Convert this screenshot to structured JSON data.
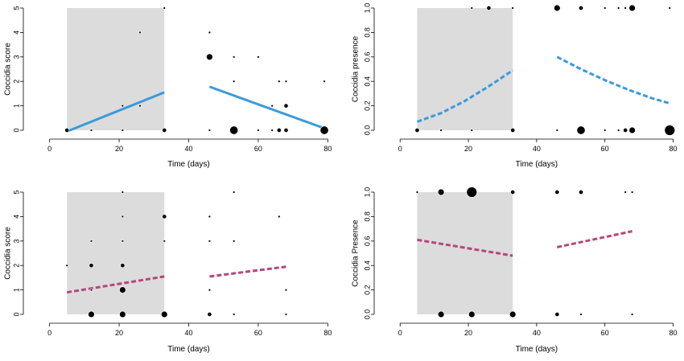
{
  "chart_data": [
    {
      "type": "scatter",
      "xlabel": "Time (days)",
      "ylabel": "Coccidia score",
      "xlim": [
        -5,
        82
      ],
      "ylim": [
        0,
        5
      ],
      "xticks": [
        0,
        20,
        40,
        60,
        80
      ],
      "yticks": [
        0,
        1,
        2,
        3,
        4,
        5
      ],
      "shaded_region": {
        "x": [
          5,
          33
        ],
        "y": [
          0,
          5
        ]
      },
      "points": [
        {
          "x": 5,
          "y": 0,
          "n": 2
        },
        {
          "x": 12,
          "y": 0,
          "n": 1
        },
        {
          "x": 21,
          "y": 0,
          "n": 1
        },
        {
          "x": 21,
          "y": 1,
          "n": 1
        },
        {
          "x": 26,
          "y": 1,
          "n": 1
        },
        {
          "x": 26,
          "y": 4,
          "n": 1
        },
        {
          "x": 33,
          "y": 0,
          "n": 2
        },
        {
          "x": 33,
          "y": 5,
          "n": 1
        },
        {
          "x": 46,
          "y": 0,
          "n": 1
        },
        {
          "x": 46,
          "y": 3,
          "n": 3
        },
        {
          "x": 46,
          "y": 4,
          "n": 1
        },
        {
          "x": 53,
          "y": 0,
          "n": 4
        },
        {
          "x": 53,
          "y": 2,
          "n": 1
        },
        {
          "x": 53,
          "y": 3,
          "n": 1
        },
        {
          "x": 60,
          "y": 0,
          "n": 1
        },
        {
          "x": 60,
          "y": 3,
          "n": 1
        },
        {
          "x": 64,
          "y": 0,
          "n": 1
        },
        {
          "x": 64,
          "y": 1,
          "n": 1
        },
        {
          "x": 66,
          "y": 0,
          "n": 2
        },
        {
          "x": 66,
          "y": 2,
          "n": 1
        },
        {
          "x": 68,
          "y": 0,
          "n": 2
        },
        {
          "x": 68,
          "y": 1,
          "n": 2
        },
        {
          "x": 68,
          "y": 2,
          "n": 1
        },
        {
          "x": 79,
          "y": 0,
          "n": 4
        },
        {
          "x": 79,
          "y": 2,
          "n": 1
        }
      ],
      "fits": [
        {
          "x": [
            5,
            33
          ],
          "y": [
            -0.05,
            1.55
          ],
          "color": "#3a9ad9",
          "style": "solid"
        },
        {
          "x": [
            46,
            79
          ],
          "y": [
            1.78,
            0.08
          ],
          "color": "#3a9ad9",
          "style": "solid"
        }
      ]
    },
    {
      "type": "scatter",
      "xlabel": "Time (days)",
      "ylabel": "Coccidia presence",
      "xlim": [
        -5,
        82
      ],
      "ylim": [
        0,
        1
      ],
      "xticks": [
        0,
        20,
        40,
        60,
        80
      ],
      "yticks": [
        0.0,
        0.2,
        0.4,
        0.6,
        0.8,
        1.0
      ],
      "ytick_labels": [
        "0.0",
        "0.2",
        "0.4",
        "0.6",
        "0.8",
        "1.0"
      ],
      "shaded_region": {
        "x": [
          5,
          33
        ],
        "y": [
          0,
          1
        ]
      },
      "points": [
        {
          "x": 5,
          "y": 0,
          "n": 2
        },
        {
          "x": 12,
          "y": 0,
          "n": 1
        },
        {
          "x": 21,
          "y": 0,
          "n": 1
        },
        {
          "x": 21,
          "y": 1,
          "n": 1
        },
        {
          "x": 26,
          "y": 1,
          "n": 2
        },
        {
          "x": 33,
          "y": 0,
          "n": 2
        },
        {
          "x": 33,
          "y": 1,
          "n": 1
        },
        {
          "x": 46,
          "y": 0,
          "n": 1
        },
        {
          "x": 46,
          "y": 1,
          "n": 3
        },
        {
          "x": 53,
          "y": 0,
          "n": 4
        },
        {
          "x": 53,
          "y": 1,
          "n": 2
        },
        {
          "x": 60,
          "y": 0,
          "n": 1
        },
        {
          "x": 60,
          "y": 1,
          "n": 1
        },
        {
          "x": 64,
          "y": 0,
          "n": 1
        },
        {
          "x": 64,
          "y": 1,
          "n": 1
        },
        {
          "x": 66,
          "y": 0,
          "n": 2
        },
        {
          "x": 66,
          "y": 1,
          "n": 1
        },
        {
          "x": 68,
          "y": 0,
          "n": 3
        },
        {
          "x": 68,
          "y": 1,
          "n": 3
        },
        {
          "x": 79,
          "y": 0,
          "n": 5
        },
        {
          "x": 79,
          "y": 1,
          "n": 1
        }
      ],
      "fits": [
        {
          "x": [
            5,
            12,
            19,
            26,
            33
          ],
          "y": [
            0.07,
            0.14,
            0.24,
            0.36,
            0.49
          ],
          "color": "#3a9ad9",
          "style": "dashed"
        },
        {
          "x": [
            46,
            53,
            60,
            67,
            74,
            79
          ],
          "y": [
            0.6,
            0.5,
            0.41,
            0.33,
            0.26,
            0.22
          ],
          "color": "#3a9ad9",
          "style": "dashed"
        }
      ]
    },
    {
      "type": "scatter",
      "xlabel": "Time (days)",
      "ylabel": "Coccidia score",
      "xlim": [
        -5,
        82
      ],
      "ylim": [
        0,
        5
      ],
      "xticks": [
        0,
        20,
        40,
        60,
        80
      ],
      "yticks": [
        0,
        1,
        2,
        3,
        4,
        5
      ],
      "shaded_region": {
        "x": [
          5,
          33
        ],
        "y": [
          0,
          5
        ]
      },
      "points": [
        {
          "x": 5,
          "y": 2,
          "n": 1
        },
        {
          "x": 12,
          "y": 0,
          "n": 3
        },
        {
          "x": 12,
          "y": 1,
          "n": 1
        },
        {
          "x": 12,
          "y": 2,
          "n": 2
        },
        {
          "x": 12,
          "y": 3,
          "n": 1
        },
        {
          "x": 21,
          "y": 0,
          "n": 3
        },
        {
          "x": 21,
          "y": 1,
          "n": 3
        },
        {
          "x": 21,
          "y": 2,
          "n": 2
        },
        {
          "x": 21,
          "y": 3,
          "n": 1
        },
        {
          "x": 21,
          "y": 4,
          "n": 1
        },
        {
          "x": 21,
          "y": 5,
          "n": 1
        },
        {
          "x": 33,
          "y": 0,
          "n": 3
        },
        {
          "x": 33,
          "y": 3,
          "n": 1
        },
        {
          "x": 33,
          "y": 4,
          "n": 2
        },
        {
          "x": 46,
          "y": 0,
          "n": 2
        },
        {
          "x": 46,
          "y": 1,
          "n": 1
        },
        {
          "x": 46,
          "y": 3,
          "n": 1
        },
        {
          "x": 46,
          "y": 4,
          "n": 1
        },
        {
          "x": 53,
          "y": 0,
          "n": 1
        },
        {
          "x": 53,
          "y": 3,
          "n": 1
        },
        {
          "x": 53,
          "y": 5,
          "n": 1
        },
        {
          "x": 66,
          "y": 4,
          "n": 1
        },
        {
          "x": 68,
          "y": 0,
          "n": 1
        },
        {
          "x": 68,
          "y": 1,
          "n": 1
        }
      ],
      "fits": [
        {
          "x": [
            5,
            33
          ],
          "y": [
            0.9,
            1.55
          ],
          "color": "#b5477a",
          "style": "dashed"
        },
        {
          "x": [
            46,
            68
          ],
          "y": [
            1.55,
            1.95
          ],
          "color": "#b5477a",
          "style": "dashed"
        }
      ]
    },
    {
      "type": "scatter",
      "xlabel": "Time (days)",
      "ylabel": "Coccidia Presence",
      "xlim": [
        -5,
        82
      ],
      "ylim": [
        0,
        1
      ],
      "xticks": [
        0,
        20,
        40,
        60,
        80
      ],
      "yticks": [
        0.0,
        0.2,
        0.4,
        0.6,
        0.8,
        1.0
      ],
      "ytick_labels": [
        "0.0",
        "0.2",
        "0.4",
        "0.6",
        "0.8",
        "1.0"
      ],
      "shaded_region": {
        "x": [
          5,
          33
        ],
        "y": [
          0,
          1
        ]
      },
      "points": [
        {
          "x": 5,
          "y": 1,
          "n": 1
        },
        {
          "x": 12,
          "y": 0,
          "n": 3
        },
        {
          "x": 12,
          "y": 1,
          "n": 3
        },
        {
          "x": 21,
          "y": 0,
          "n": 3
        },
        {
          "x": 21,
          "y": 1,
          "n": 5
        },
        {
          "x": 33,
          "y": 0,
          "n": 3
        },
        {
          "x": 33,
          "y": 1,
          "n": 2
        },
        {
          "x": 46,
          "y": 0,
          "n": 2
        },
        {
          "x": 46,
          "y": 1,
          "n": 2
        },
        {
          "x": 53,
          "y": 0,
          "n": 1
        },
        {
          "x": 53,
          "y": 1,
          "n": 2
        },
        {
          "x": 66,
          "y": 1,
          "n": 1
        },
        {
          "x": 68,
          "y": 0,
          "n": 1
        },
        {
          "x": 68,
          "y": 1,
          "n": 1
        }
      ],
      "fits": [
        {
          "x": [
            5,
            33
          ],
          "y": [
            0.61,
            0.48
          ],
          "color": "#b5477a",
          "style": "dashed"
        },
        {
          "x": [
            46,
            68
          ],
          "y": [
            0.55,
            0.68
          ],
          "color": "#b5477a",
          "style": "dashed"
        }
      ]
    }
  ]
}
